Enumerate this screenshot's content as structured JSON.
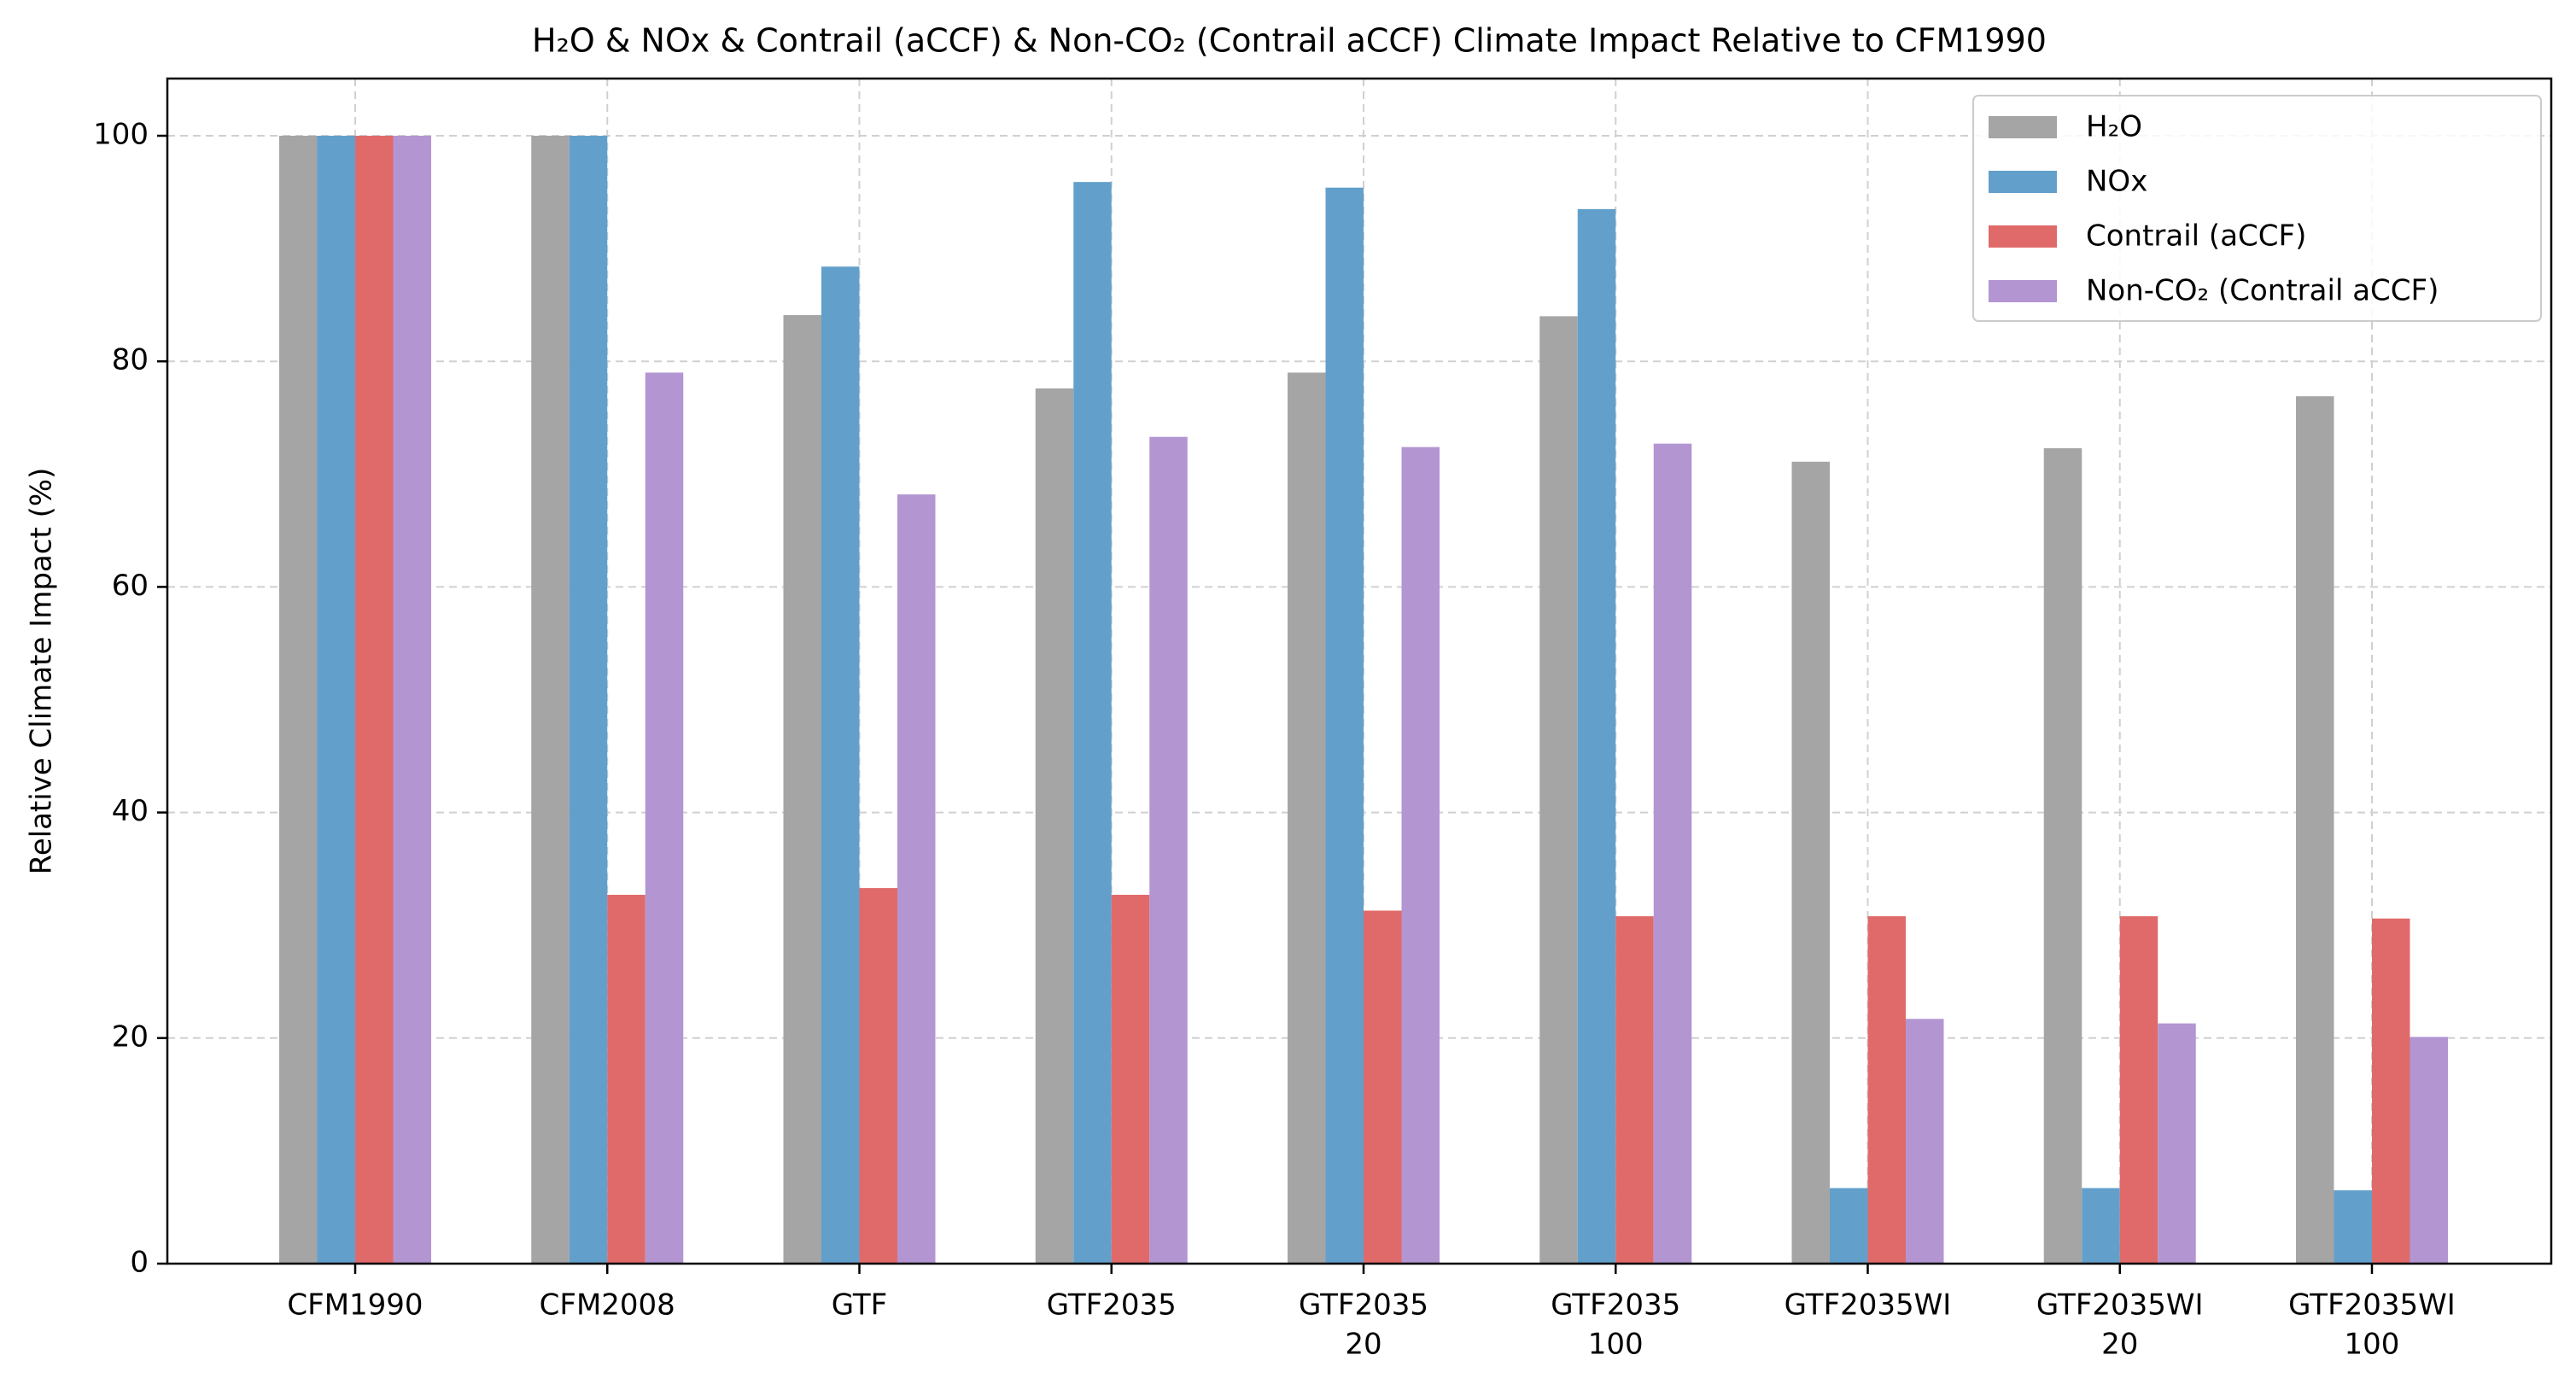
{
  "chart_data": {
    "type": "bar",
    "title": "H₂O & NOx & Contrail (aCCF) & Non-CO₂ (Contrail aCCF) Climate Impact Relative to CFM1990",
    "xlabel": "",
    "ylabel": "Relative Climate Impact (%)",
    "ylim": [
      0,
      105
    ],
    "yticks": [
      0,
      20,
      40,
      60,
      80,
      100
    ],
    "grid": true,
    "legend_position": "top-right",
    "categories": [
      [
        "CFM1990"
      ],
      [
        "CFM2008"
      ],
      [
        "GTF"
      ],
      [
        "GTF2035"
      ],
      [
        "GTF2035",
        "20"
      ],
      [
        "GTF2035",
        "100"
      ],
      [
        "GTF2035WI"
      ],
      [
        "GTF2035WI",
        "20"
      ],
      [
        "GTF2035WI",
        "100"
      ]
    ],
    "series": [
      {
        "name": "H₂O",
        "color": "#a5a5a5",
        "values": [
          100,
          100,
          84.1,
          77.6,
          79.0,
          84.0,
          71.1,
          72.3,
          76.9
        ]
      },
      {
        "name": "NOx",
        "color": "#62a0cb",
        "values": [
          100,
          100,
          88.4,
          95.9,
          95.4,
          93.5,
          6.7,
          6.7,
          6.5
        ]
      },
      {
        "name": "Contrail (aCCF)",
        "color": "#e06a6a",
        "values": [
          100,
          32.7,
          33.3,
          32.7,
          31.3,
          30.8,
          30.8,
          30.8,
          30.6
        ]
      },
      {
        "name": "Non-CO₂ (Contrail aCCF)",
        "color": "#b395d2",
        "values": [
          100,
          79.0,
          68.2,
          73.3,
          72.4,
          72.7,
          21.7,
          21.3,
          20.1
        ]
      }
    ]
  }
}
